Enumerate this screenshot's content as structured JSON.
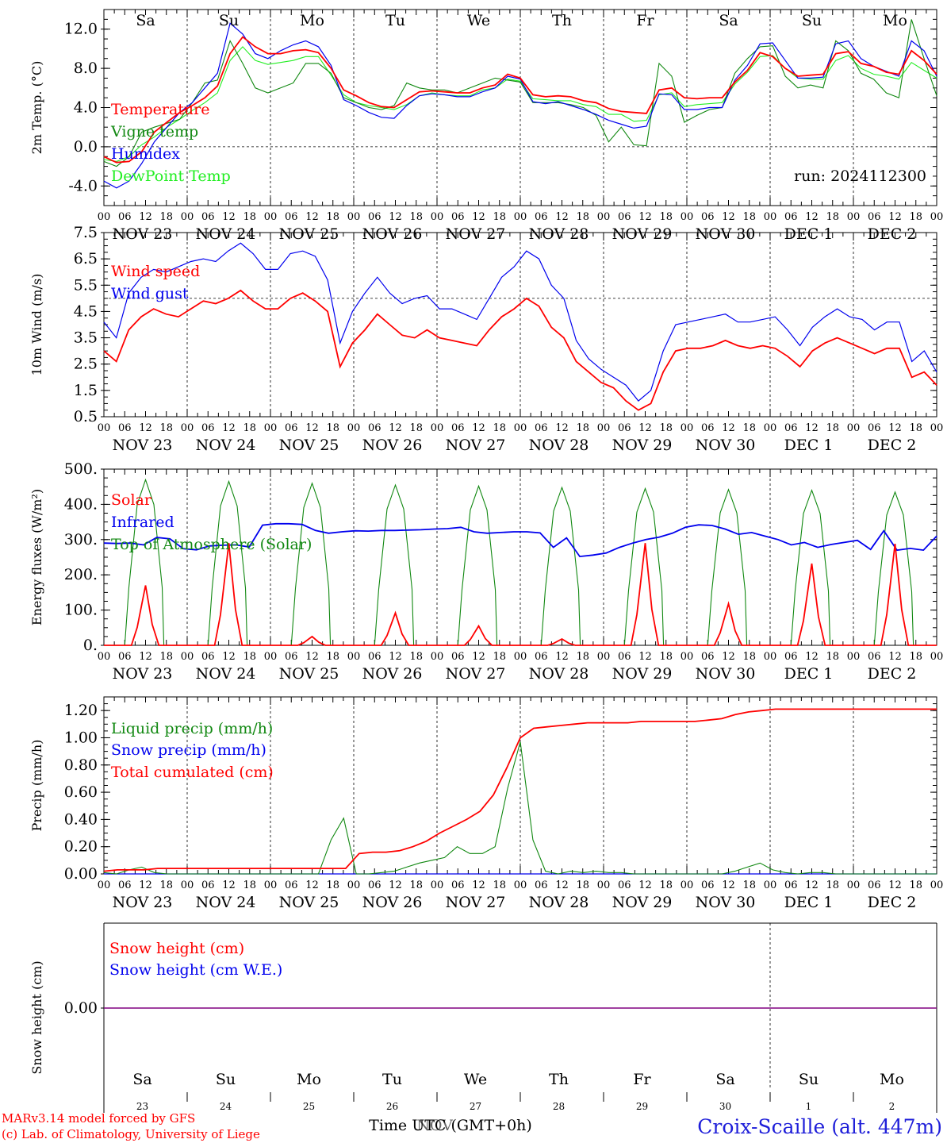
{
  "run_label": "run: 2024112300",
  "footer": {
    "credit1": "MARv3.14 model forced by GFS",
    "credit2": "(c) Lab. of Climatology, University of Liege",
    "time_label": "Time UTC (GMT+0h)",
    "time_label2": "NOV",
    "station": "Croix-Scaille (alt. 447m)"
  },
  "weekdays": [
    "Sa",
    "Su",
    "Mo",
    "Tu",
    "We",
    "Th",
    "Fr",
    "Sa",
    "Su",
    "Mo"
  ],
  "weekend_flags": [
    true,
    true,
    false,
    false,
    false,
    false,
    false,
    true,
    true,
    false
  ],
  "dates": [
    "NOV 23",
    "NOV 24",
    "NOV 25",
    "NOV 26",
    "NOV 27",
    "NOV 28",
    "NOV 29",
    "NOV 30",
    "DEC  1",
    "DEC  2"
  ],
  "day_numbers": [
    "23",
    "24",
    "25",
    "26",
    "27",
    "28",
    "29",
    "30",
    "1",
    "2"
  ],
  "hour_ticks": [
    "00",
    "06",
    "12",
    "18"
  ],
  "colors": {
    "red": "#ff0000",
    "green": "#118811",
    "blue": "#0000ee",
    "lightgreen": "#22ee22",
    "purple": "#800080"
  },
  "chart_data": [
    {
      "type": "line",
      "ylabel": "2m Temp. (°C)",
      "ylim": [
        -6,
        14
      ],
      "yticks": [
        "-4.0",
        "0.0",
        "4.0",
        "8.0",
        "12.0"
      ],
      "ytick_values": [
        -4,
        0,
        4,
        8,
        12
      ],
      "ref_line": 0,
      "x_hours_step": 6,
      "series": [
        {
          "name": "Temperature",
          "color": "red",
          "values": [
            -1,
            -1.6,
            -1.5,
            -0.5,
            1.5,
            2.5,
            3.5,
            4.2,
            5,
            6.2,
            9.5,
            11.2,
            10.2,
            9.5,
            9.5,
            9.8,
            9.9,
            9.6,
            8,
            5.8,
            5.2,
            4.5,
            4.1,
            4,
            4.8,
            5.6,
            5.7,
            5.6,
            5.5,
            5.5,
            6,
            6.3,
            7.4,
            7,
            5.3,
            5.1,
            5.2,
            5.1,
            4.7,
            4.5,
            3.9,
            3.6,
            3.5,
            3.4,
            5.8,
            6,
            5,
            4.9,
            5,
            5,
            6.6,
            7.8,
            9.6,
            9.2,
            8,
            7.2,
            7.3,
            7.4,
            9.5,
            9.7,
            8.5,
            8.2,
            7.6,
            7.4,
            9.8,
            8.8,
            7.4
          ]
        },
        {
          "name": "Vigne temp",
          "color": "green",
          "values": [
            -1.5,
            -2,
            -1,
            1.5,
            2,
            2.4,
            2.8,
            4.5,
            6.5,
            6.8,
            10.8,
            8.5,
            6,
            5.5,
            6,
            6.5,
            8.5,
            8.5,
            7.5,
            5,
            4.5,
            4,
            3.8,
            4.2,
            6.5,
            6,
            5.8,
            5.8,
            5.5,
            6,
            6.5,
            7,
            6.8,
            6.6,
            4.5,
            4.5,
            4.5,
            4.3,
            4,
            3.2,
            0.5,
            2,
            0.2,
            0.1,
            8.5,
            7.2,
            2.5,
            3.2,
            3.8,
            4,
            7.5,
            9,
            10.2,
            10.3,
            7.2,
            6,
            6.3,
            6,
            10.8,
            9.8,
            7.5,
            6.9,
            5.5,
            5,
            13,
            9,
            5.2
          ]
        },
        {
          "name": "Humidex",
          "color": "blue",
          "values": [
            -3.5,
            -4.2,
            -3.5,
            -1.7,
            0.5,
            2,
            3.5,
            4.5,
            6,
            7.5,
            12.6,
            11.5,
            9.5,
            9,
            9.8,
            10.4,
            10.8,
            10.2,
            8.3,
            4.8,
            4.2,
            3.5,
            3,
            2.9,
            4.2,
            5.2,
            5.4,
            5.3,
            5.1,
            5.1,
            5.6,
            6,
            7.2,
            6.9,
            4.6,
            4.4,
            4.6,
            4.2,
            3.8,
            3.3,
            2.7,
            2.3,
            1.9,
            2.1,
            5.4,
            5.3,
            3.8,
            3.8,
            4,
            4,
            6.8,
            8.3,
            10.5,
            10.6,
            8.8,
            7,
            7,
            7.1,
            10.5,
            10.8,
            9,
            8.2,
            7.7,
            7.2,
            10.8,
            9.8,
            7.2
          ]
        },
        {
          "name": "DewPoint Temp",
          "color": "lightgreen",
          "values": [
            -1.3,
            -1.5,
            -1,
            0.2,
            1,
            2,
            2.8,
            3.7,
            4.5,
            5.5,
            8.8,
            10.2,
            8.8,
            8.4,
            8.6,
            8.8,
            9.2,
            9.2,
            7.3,
            5.3,
            4.5,
            4.2,
            4,
            3.8,
            4.3,
            5.2,
            5.5,
            5.3,
            5.2,
            5.2,
            5.8,
            6,
            6.9,
            6.7,
            4.9,
            4.8,
            4.7,
            4.7,
            4.3,
            4.1,
            3.3,
            3.3,
            2.6,
            2.7,
            5.3,
            5.5,
            4.1,
            4.3,
            4.4,
            4.5,
            6.4,
            7.6,
            9.2,
            9.3,
            8,
            7,
            6.9,
            6.9,
            8.8,
            9.3,
            8,
            7.4,
            7.2,
            6.9,
            8.6,
            7.8,
            7.0
          ]
        }
      ]
    },
    {
      "type": "line",
      "ylabel": "10m Wind (m/s)",
      "ylim": [
        0.5,
        7.5
      ],
      "yticks": [
        "0.5",
        "1.5",
        "2.5",
        "3.5",
        "4.5",
        "5.5",
        "6.5",
        "7.5"
      ],
      "ytick_values": [
        0.5,
        1.5,
        2.5,
        3.5,
        4.5,
        5.5,
        6.5,
        7.5
      ],
      "ref_line": 5,
      "series": [
        {
          "name": "Wind speed",
          "color": "red",
          "values": [
            3,
            2.6,
            3.8,
            4.3,
            4.6,
            4.4,
            4.3,
            4.6,
            4.9,
            4.8,
            5,
            5.3,
            4.9,
            4.6,
            4.6,
            5,
            5.2,
            4.9,
            4.5,
            2.4,
            3.3,
            3.8,
            4.4,
            4,
            3.6,
            3.5,
            3.8,
            3.5,
            3.4,
            3.3,
            3.2,
            3.8,
            4.3,
            4.6,
            5,
            4.7,
            3.9,
            3.5,
            2.6,
            2.2,
            1.8,
            1.6,
            1.1,
            0.75,
            1,
            2.2,
            3,
            3.1,
            3.1,
            3.2,
            3.4,
            3.2,
            3.1,
            3.2,
            3.1,
            2.8,
            2.4,
            3,
            3.3,
            3.5,
            3.3,
            3.1,
            2.9,
            3.1,
            3.1,
            2,
            2.2,
            1.7
          ]
        },
        {
          "name": "Wind gust",
          "color": "blue",
          "values": [
            4.1,
            3.5,
            5.2,
            5.8,
            6.1,
            6,
            6.2,
            6.4,
            6.5,
            6.4,
            6.8,
            7.1,
            6.7,
            6.1,
            6.1,
            6.7,
            6.8,
            6.6,
            5.7,
            3.3,
            4.5,
            5.2,
            5.8,
            5.2,
            4.8,
            5,
            5.1,
            4.6,
            4.6,
            4.4,
            4.2,
            5,
            5.8,
            6.2,
            6.8,
            6.5,
            5.5,
            5,
            3.4,
            2.7,
            2.3,
            2,
            1.7,
            1.1,
            1.5,
            3,
            4,
            4.1,
            4.2,
            4.3,
            4.4,
            4.1,
            4.1,
            4.2,
            4.3,
            3.8,
            3.2,
            3.9,
            4.3,
            4.6,
            4.3,
            4.2,
            3.8,
            4.1,
            4.1,
            2.6,
            3,
            2.2
          ]
        }
      ]
    },
    {
      "type": "line",
      "ylabel": "Energy fluxes (W/m²)",
      "ylim": [
        0,
        500
      ],
      "yticks": [
        "0.",
        "100.",
        "200.",
        "300.",
        "400.",
        "500."
      ],
      "ytick_values": [
        0,
        100,
        200,
        300,
        400,
        500
      ],
      "series": [
        {
          "name": "Solar",
          "color": "red",
          "peaks": [
            170,
            290,
            25,
            92,
            55,
            18,
            290,
            118,
            232,
            288
          ]
        },
        {
          "name": "Infrared",
          "color": "blue",
          "values": [
            290,
            289,
            290,
            285,
            306,
            302,
            274,
            271,
            282,
            284,
            285,
            279,
            341,
            345,
            345,
            343,
            326,
            318,
            322,
            325,
            324,
            326,
            326,
            327,
            328,
            330,
            331,
            335,
            322,
            318,
            320,
            322,
            322,
            319,
            278,
            305,
            252,
            256,
            262,
            278,
            290,
            300,
            307,
            318,
            335,
            342,
            340,
            330,
            315,
            320,
            310,
            300,
            285,
            292,
            278,
            286,
            292,
            298,
            272,
            325,
            270,
            275,
            270,
            310
          ]
        },
        {
          "name": "Top of Atmosphere (Solar)",
          "color": "green",
          "peaks": [
            470,
            465,
            460,
            455,
            452,
            448,
            445,
            442,
            440,
            435
          ]
        }
      ]
    },
    {
      "type": "line",
      "ylabel": "Precip (mm/h)",
      "ylim": [
        0,
        1.3
      ],
      "yticks": [
        "0.00",
        "0.20",
        "0.40",
        "0.60",
        "0.80",
        "1.00",
        "1.20"
      ],
      "ytick_values": [
        0,
        0.2,
        0.4,
        0.6,
        0.8,
        1.0,
        1.2
      ],
      "series": [
        {
          "name": "Liquid precip (mm/h)",
          "color": "green",
          "values": [
            0.01,
            0,
            0.03,
            0.05,
            0.01,
            0,
            0,
            0,
            0,
            0,
            0,
            0,
            0,
            0,
            0,
            0,
            0,
            0,
            0.25,
            0.41,
            0,
            0,
            0.01,
            0.02,
            0.05,
            0.08,
            0.1,
            0.12,
            0.2,
            0.15,
            0.15,
            0.2,
            0.63,
            0.97,
            0.25,
            0.02,
            0,
            0.02,
            0.01,
            0.02,
            0.01,
            0.01,
            0,
            0,
            0,
            0,
            0,
            0,
            0,
            0,
            0.02,
            0.05,
            0.08,
            0.03,
            0.01,
            0,
            0.01,
            0.01,
            0,
            0,
            0,
            0,
            0,
            0,
            0,
            0,
            0
          ]
        },
        {
          "name": "Snow precip (mm/h)",
          "color": "blue",
          "values": [
            0,
            0,
            0,
            0,
            0,
            0,
            0,
            0,
            0,
            0,
            0,
            0,
            0,
            0,
            0,
            0,
            0,
            0,
            0,
            0,
            0,
            0,
            0,
            0,
            0,
            0,
            0,
            0,
            0,
            0,
            0,
            0,
            0,
            0,
            0,
            0,
            0,
            0,
            0,
            0,
            0,
            0,
            0,
            0,
            0,
            0,
            0,
            0,
            0,
            0,
            0,
            0,
            0,
            0,
            0,
            0,
            0,
            0,
            0,
            0,
            0,
            0,
            0,
            0,
            0,
            0,
            0
          ]
        },
        {
          "name": "Total cumulated (cm)",
          "color": "red",
          "values": [
            0.02,
            0.03,
            0.03,
            0.03,
            0.04,
            0.04,
            0.04,
            0.04,
            0.04,
            0.04,
            0.04,
            0.04,
            0.04,
            0.04,
            0.04,
            0.04,
            0.04,
            0.04,
            0.04,
            0.15,
            0.16,
            0.16,
            0.17,
            0.2,
            0.24,
            0.3,
            0.35,
            0.4,
            0.46,
            0.58,
            0.78,
            1.0,
            1.07,
            1.08,
            1.09,
            1.1,
            1.11,
            1.11,
            1.11,
            1.11,
            1.12,
            1.12,
            1.12,
            1.12,
            1.12,
            1.13,
            1.14,
            1.17,
            1.19,
            1.2,
            1.21,
            1.21,
            1.21,
            1.21,
            1.21,
            1.21,
            1.21,
            1.21,
            1.21,
            1.21,
            1.21,
            1.21,
            1.21
          ]
        }
      ]
    },
    {
      "type": "line",
      "ylabel": "Snow height (cm)",
      "yticks": [
        "0.00"
      ],
      "series": [
        {
          "name": "Snow height (cm)",
          "color": "red",
          "values": [
            0,
            0
          ]
        },
        {
          "name": "Snow height (cm W.E.)",
          "color": "blue",
          "values": [
            0,
            0
          ]
        }
      ]
    }
  ]
}
